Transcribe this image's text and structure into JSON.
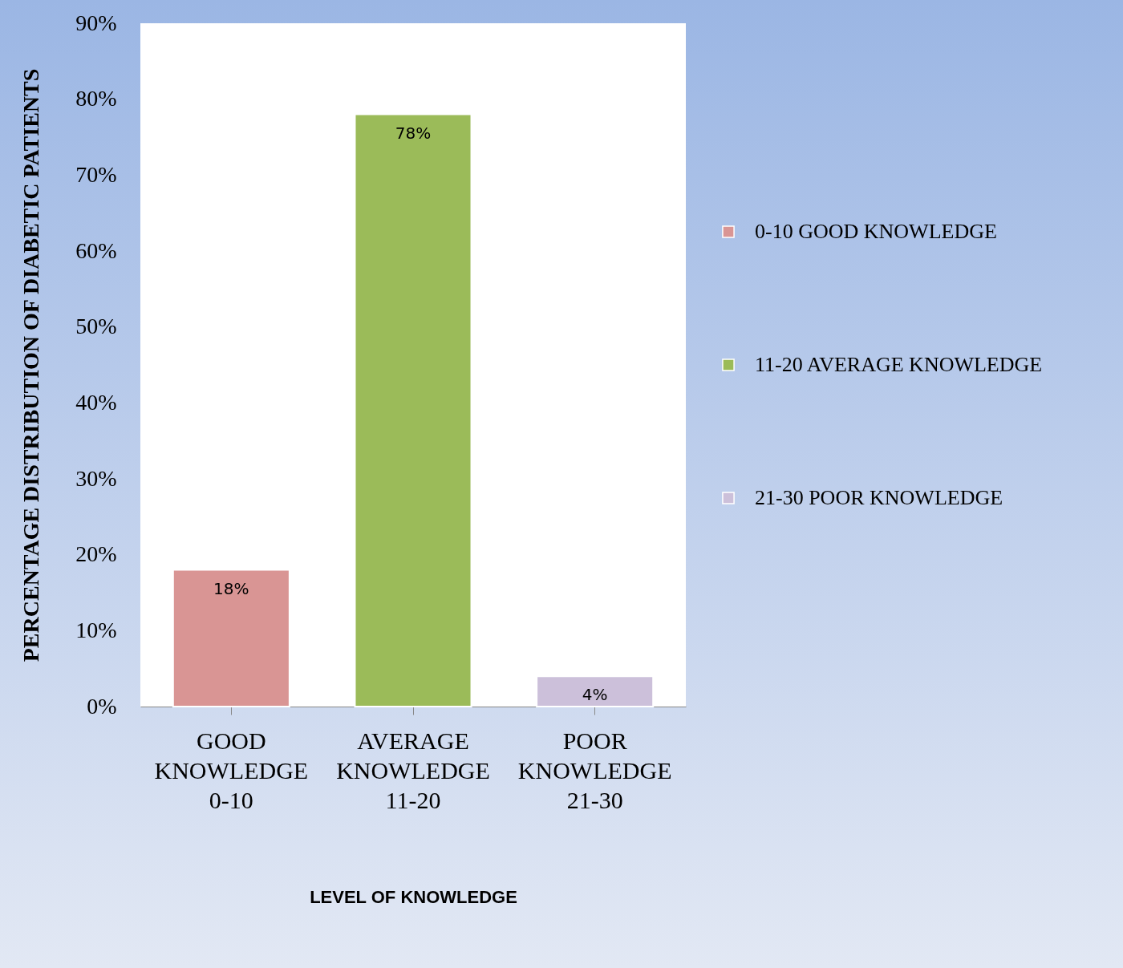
{
  "chart_data": {
    "type": "bar",
    "xlabel": "LEVEL OF KNOWLEDGE",
    "ylabel": "PERCENTAGE  DISTRIBUTION OF DIABETIC  PATIENTS",
    "categories": [
      "GOOD KNOWLEDGE 0-10",
      "AVERAGE KNOWLEDGE 11-20",
      "POOR KNOWLEDGE 21-30"
    ],
    "series": [
      {
        "name": "0-10  GOOD KNOWLEDGE",
        "color": "#d99594",
        "values": [
          18,
          null,
          null
        ]
      },
      {
        "name": "11-20 AVERAGE KNOWLEDGE",
        "color": "#9bbb59",
        "values": [
          null,
          78,
          null
        ]
      },
      {
        "name": "21-30 POOR KNOWLEDGE",
        "color": "#ccc0da",
        "values": [
          null,
          null,
          4
        ]
      }
    ],
    "ylim": [
      0,
      90
    ],
    "yticks": [
      {
        "value": 0,
        "label": "0%"
      },
      {
        "value": 10,
        "label": "10%"
      },
      {
        "value": 20,
        "label": "20%"
      },
      {
        "value": 30,
        "label": "30%"
      },
      {
        "value": 40,
        "label": "40%"
      },
      {
        "value": 50,
        "label": "50%"
      },
      {
        "value": 60,
        "label": "60%"
      },
      {
        "value": 70,
        "label": "70%"
      },
      {
        "value": 80,
        "label": "80%"
      },
      {
        "value": 90,
        "label": "90%"
      }
    ],
    "value_labels": [
      "18%",
      "78%",
      "4%"
    ],
    "legend": "right",
    "grid": false
  }
}
